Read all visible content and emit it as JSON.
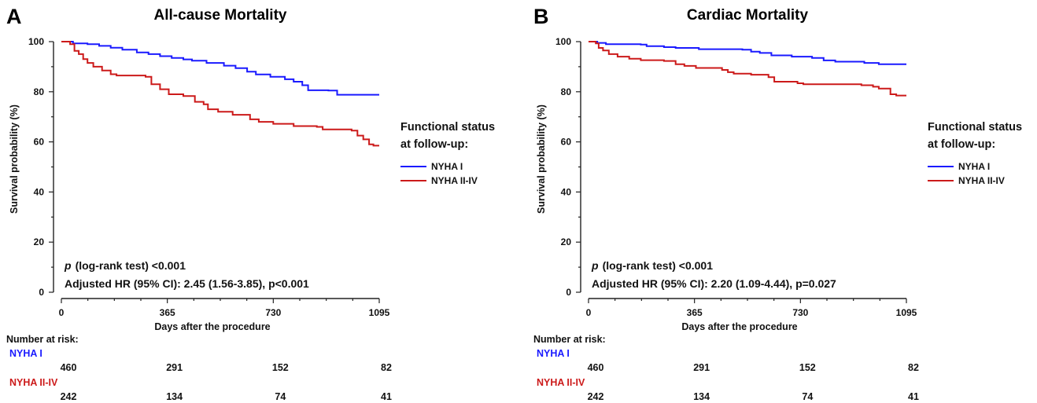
{
  "colors": {
    "nyha1": "#1a1aff",
    "nyha2": "#cc1a1a"
  },
  "chart_data": [
    {
      "type": "line",
      "panel": "A",
      "title": "All-cause Mortality",
      "xlabel": "Days after the procedure",
      "ylabel": "Survival probability (%)",
      "xlim": [
        0,
        1095
      ],
      "ylim": [
        0,
        100
      ],
      "xticks": [
        "0",
        "365",
        "730",
        "1095"
      ],
      "yticks": [
        "0",
        "20",
        "40",
        "60",
        "80",
        "100"
      ],
      "legend_title_line1": "Functional status",
      "legend_title_line2": "at follow-up:",
      "stat_p_label": "p",
      "stat_p_text": "(log-rank test) <0.001",
      "stat_hr_text": "Adjusted HR (95% CI): 2.45 (1.56-3.85),  p<0.001",
      "series": [
        {
          "name": "NYHA I",
          "color_key": "nyha1",
          "points": [
            [
              0,
              100
            ],
            [
              20,
              100
            ],
            [
              40,
              99.3
            ],
            [
              90,
              99
            ],
            [
              130,
              98.3
            ],
            [
              170,
              97.6
            ],
            [
              210,
              96.8
            ],
            [
              260,
              95.7
            ],
            [
              300,
              95
            ],
            [
              340,
              94.2
            ],
            [
              380,
              93.5
            ],
            [
              420,
              92.9
            ],
            [
              450,
              92.4
            ],
            [
              500,
              91.5
            ],
            [
              560,
              90.4
            ],
            [
              600,
              89.4
            ],
            [
              640,
              88
            ],
            [
              670,
              86.9
            ],
            [
              720,
              86
            ],
            [
              770,
              85
            ],
            [
              800,
              84
            ],
            [
              830,
              82.6
            ],
            [
              850,
              80.6
            ],
            [
              920,
              80.5
            ],
            [
              950,
              78.8
            ],
            [
              1095,
              78.8
            ]
          ]
        },
        {
          "name": "NYHA II-IV",
          "color_key": "nyha2",
          "points": [
            [
              0,
              100
            ],
            [
              30,
              99
            ],
            [
              45,
              96.3
            ],
            [
              60,
              95
            ],
            [
              75,
              93
            ],
            [
              90,
              91.5
            ],
            [
              110,
              90
            ],
            [
              140,
              88.5
            ],
            [
              170,
              87
            ],
            [
              190,
              86.5
            ],
            [
              290,
              86
            ],
            [
              310,
              83
            ],
            [
              340,
              81
            ],
            [
              370,
              79
            ],
            [
              420,
              78.3
            ],
            [
              460,
              76
            ],
            [
              490,
              75
            ],
            [
              505,
              73
            ],
            [
              540,
              72
            ],
            [
              590,
              70.8
            ],
            [
              650,
              69
            ],
            [
              680,
              68
            ],
            [
              730,
              67.2
            ],
            [
              800,
              66.3
            ],
            [
              880,
              66
            ],
            [
              900,
              65
            ],
            [
              970,
              65
            ],
            [
              1000,
              64.5
            ],
            [
              1020,
              62.5
            ],
            [
              1040,
              61
            ],
            [
              1060,
              59
            ],
            [
              1075,
              58.5
            ],
            [
              1095,
              58.5
            ]
          ]
        }
      ],
      "risk_table": {
        "header": "Number at risk:",
        "rows": [
          {
            "name": "NYHA I",
            "color_key": "nyha1",
            "values": [
              "460",
              "291",
              "152",
              "82"
            ]
          },
          {
            "name": "NYHA II-IV",
            "color_key": "nyha2",
            "values": [
              "242",
              "134",
              "74",
              "41"
            ]
          }
        ]
      }
    },
    {
      "type": "line",
      "panel": "B",
      "title": "Cardiac Mortality",
      "xlabel": "Days after the procedure",
      "ylabel": "Survival probability (%)",
      "xlim": [
        0,
        1095
      ],
      "ylim": [
        0,
        100
      ],
      "xticks": [
        "0",
        "365",
        "730",
        "1095"
      ],
      "yticks": [
        "0",
        "20",
        "40",
        "60",
        "80",
        "100"
      ],
      "legend_title_line1": "Functional status",
      "legend_title_line2": "at follow-up:",
      "stat_p_label": "p",
      "stat_p_text": "(log-rank test) <0.001",
      "stat_hr_text": "Adjusted HR (95% CI): 2.20 (1.09-4.44),  p=0.027",
      "series": [
        {
          "name": "NYHA I",
          "color_key": "nyha1",
          "points": [
            [
              0,
              100
            ],
            [
              30,
              99.5
            ],
            [
              60,
              99
            ],
            [
              180,
              98.8
            ],
            [
              200,
              98.2
            ],
            [
              260,
              97.8
            ],
            [
              300,
              97.5
            ],
            [
              380,
              97
            ],
            [
              530,
              96.8
            ],
            [
              560,
              96
            ],
            [
              590,
              95.5
            ],
            [
              630,
              94.5
            ],
            [
              700,
              94
            ],
            [
              770,
              93.5
            ],
            [
              810,
              92.5
            ],
            [
              850,
              92
            ],
            [
              950,
              91.5
            ],
            [
              1000,
              91
            ],
            [
              1095,
              91
            ]
          ]
        },
        {
          "name": "NYHA II-IV",
          "color_key": "nyha2",
          "points": [
            [
              0,
              100
            ],
            [
              25,
              99.3
            ],
            [
              35,
              97.5
            ],
            [
              50,
              96.5
            ],
            [
              70,
              95
            ],
            [
              100,
              94
            ],
            [
              140,
              93.2
            ],
            [
              180,
              92.6
            ],
            [
              260,
              92.3
            ],
            [
              300,
              91
            ],
            [
              330,
              90.3
            ],
            [
              370,
              89.5
            ],
            [
              460,
              88.7
            ],
            [
              480,
              87.8
            ],
            [
              500,
              87.2
            ],
            [
              560,
              86.8
            ],
            [
              620,
              85.8
            ],
            [
              640,
              84
            ],
            [
              720,
              83.4
            ],
            [
              740,
              83
            ],
            [
              940,
              82.6
            ],
            [
              980,
              82
            ],
            [
              1000,
              81.3
            ],
            [
              1040,
              79
            ],
            [
              1060,
              78.5
            ],
            [
              1095,
              78.5
            ]
          ]
        }
      ],
      "risk_table": {
        "header": "Number at risk:",
        "rows": [
          {
            "name": "NYHA I",
            "color_key": "nyha1",
            "values": [
              "460",
              "291",
              "152",
              "82"
            ]
          },
          {
            "name": "NYHA II-IV",
            "color_key": "nyha2",
            "values": [
              "242",
              "134",
              "74",
              "41"
            ]
          }
        ]
      }
    }
  ]
}
